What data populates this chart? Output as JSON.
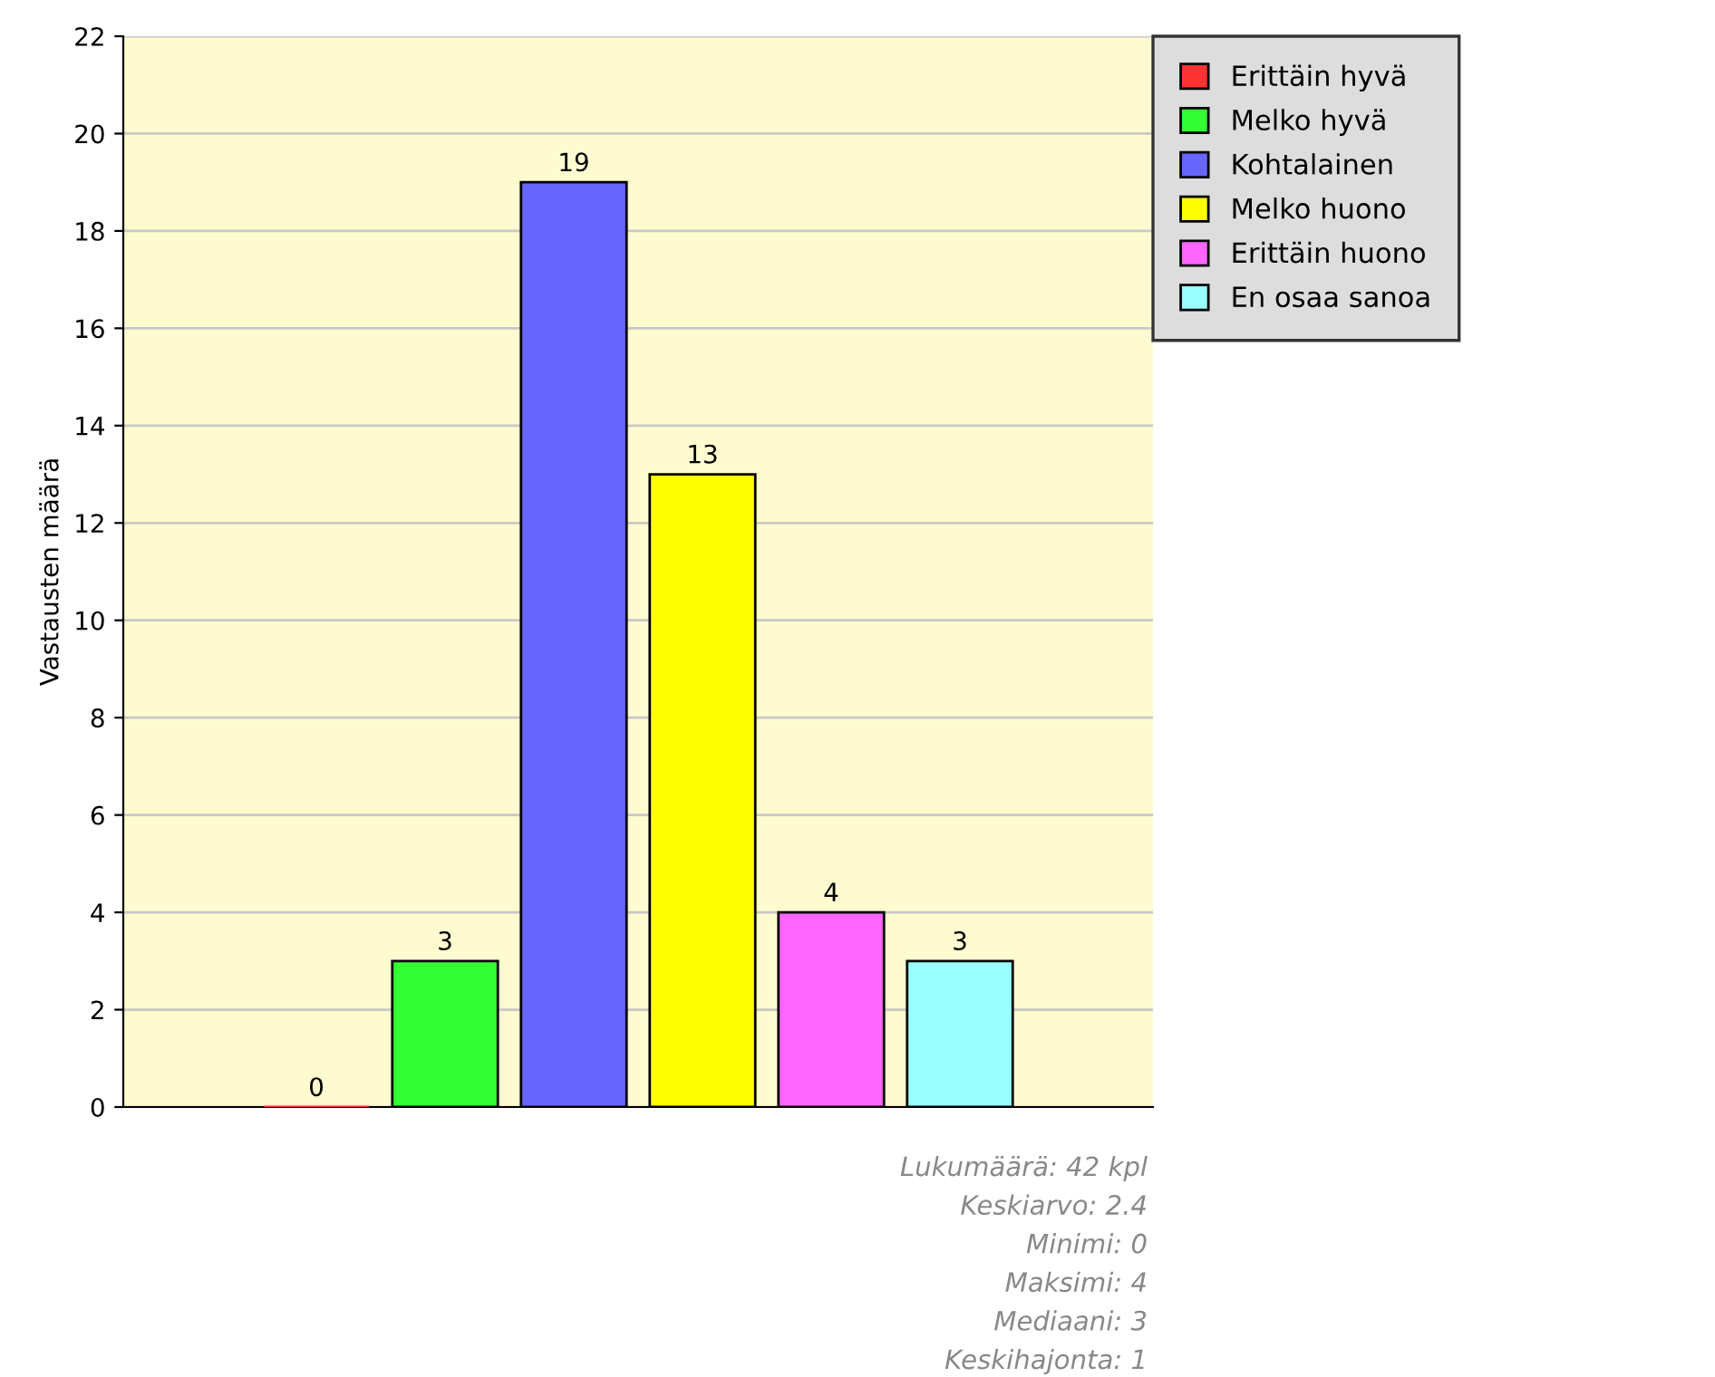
{
  "chart_data": {
    "type": "bar",
    "ylabel": "Vastausten määrä",
    "categories": [
      null,
      null,
      null,
      null,
      null,
      null,
      null,
      null
    ],
    "series": [
      {
        "name": "Erittäin hyvä",
        "color": "#ff3333",
        "values": [
          null,
          0,
          null,
          null,
          null,
          null,
          null,
          null
        ]
      },
      {
        "name": "Melko hyvä",
        "color": "#33ff33",
        "values": [
          null,
          null,
          3,
          null,
          null,
          null,
          null,
          null
        ]
      },
      {
        "name": "Kohtalainen",
        "color": "#6666ff",
        "values": [
          null,
          null,
          null,
          19,
          null,
          null,
          null,
          null
        ]
      },
      {
        "name": "Melko huono",
        "color": "#ffff00",
        "values": [
          null,
          null,
          null,
          null,
          13,
          null,
          null,
          null
        ]
      },
      {
        "name": "Erittäin huono",
        "color": "#ff66ff",
        "values": [
          null,
          null,
          null,
          null,
          null,
          4,
          null,
          null
        ]
      },
      {
        "name": "En osaa sanoa",
        "color": "#99ffff",
        "values": [
          null,
          null,
          null,
          null,
          null,
          null,
          3,
          null
        ]
      }
    ],
    "ylim": [
      0,
      22
    ],
    "yticks": [
      0,
      2,
      4,
      6,
      8,
      10,
      12,
      14,
      16,
      18,
      20,
      22
    ],
    "grid": "y",
    "legend": "right",
    "data_labels": true,
    "annotations": [
      "Lukumäärä: 42 kpl",
      "Keskiarvo: 2.4",
      "Minimi: 0",
      "Maksimi: 4",
      "Mediaani: 3",
      "Keskihajonta: 1"
    ]
  }
}
